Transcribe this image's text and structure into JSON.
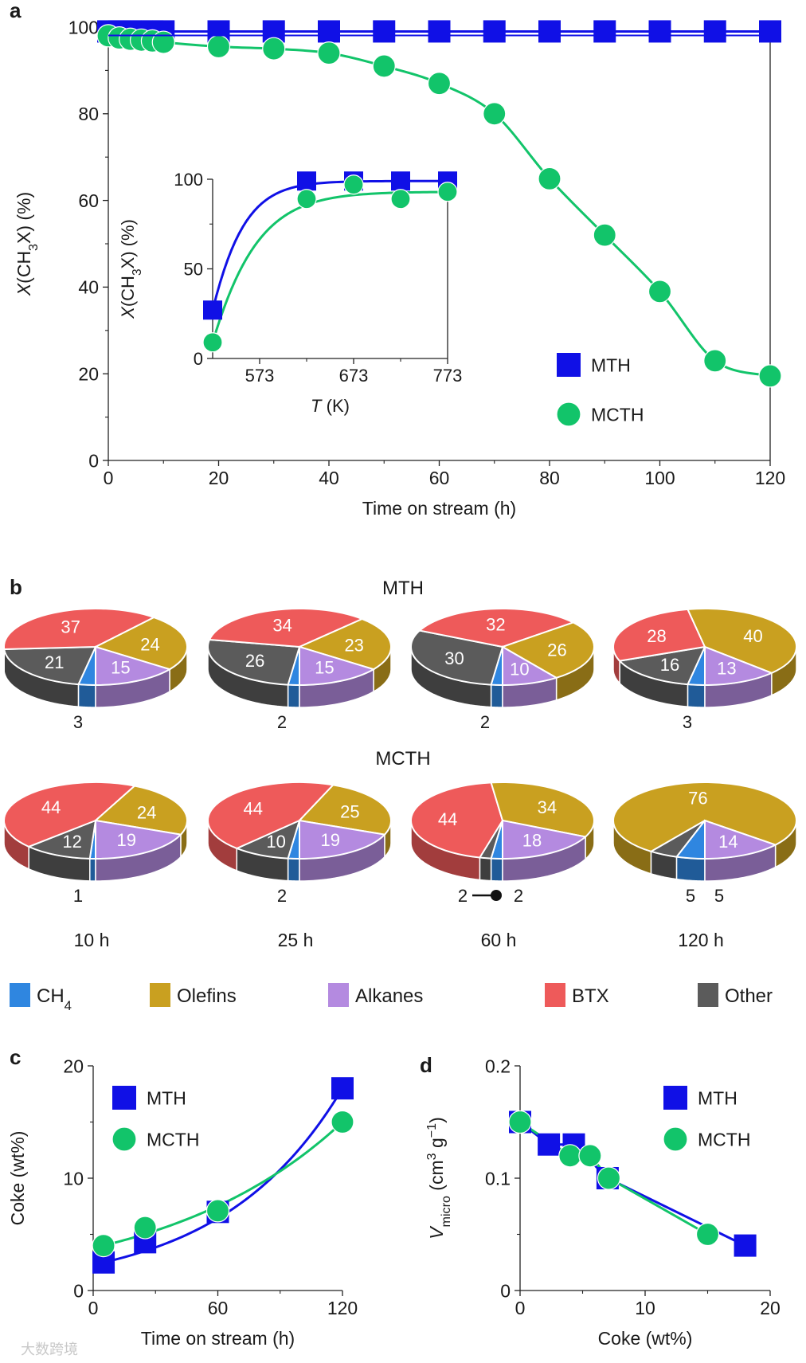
{
  "panels": {
    "a": {
      "letter": "a"
    },
    "b": {
      "letter": "b",
      "top_title": "MTH",
      "mid_title": "MCTH"
    },
    "c": {
      "letter": "c"
    },
    "d": {
      "letter": "d"
    }
  },
  "colors": {
    "MTH": "#1010e6",
    "MCTH": "#12c46a",
    "CH4": "#2f86e0",
    "Olefins": "#c9a020",
    "Alkanes": "#b48ae0",
    "BTX": "#ee5a5a",
    "Other": "#5b5b5b"
  },
  "categories_legend": [
    {
      "key": "CH4",
      "label": "CH",
      "sub": "4"
    },
    {
      "key": "Olefins",
      "label": "Olefins",
      "sub": ""
    },
    {
      "key": "Alkanes",
      "label": "Alkanes",
      "sub": ""
    },
    {
      "key": "BTX",
      "label": "BTX",
      "sub": ""
    },
    {
      "key": "Other",
      "label": "Other",
      "sub": ""
    }
  ],
  "watermark": "大数跨境",
  "chart_data": [
    {
      "id": "a",
      "type": "scatter",
      "xlabel": "Time on stream (h)",
      "ylabel": "X(CH3X) (%)",
      "xlim": [
        0,
        120
      ],
      "ylim": [
        0,
        100
      ],
      "xticks": [
        "0",
        "20",
        "40",
        "60",
        "80",
        "100",
        "120"
      ],
      "yticks": [
        "0",
        "20",
        "40",
        "60",
        "80",
        "100"
      ],
      "legend": {
        "position": "lower-right",
        "entries": [
          "MTH",
          "MCTH"
        ]
      },
      "series": [
        {
          "name": "MTH",
          "marker": "square",
          "x": [
            0,
            2,
            4,
            6,
            8,
            10,
            20,
            30,
            40,
            50,
            60,
            70,
            80,
            90,
            100,
            110,
            120
          ],
          "y": [
            99,
            99,
            99,
            99,
            99,
            99,
            99,
            99,
            99,
            99,
            99,
            99,
            99,
            99,
            99,
            99,
            99
          ]
        },
        {
          "name": "MCTH",
          "marker": "circle",
          "x": [
            0,
            2,
            4,
            6,
            8,
            10,
            20,
            30,
            40,
            50,
            60,
            70,
            80,
            90,
            100,
            110,
            120
          ],
          "y": [
            98,
            97.5,
            97.2,
            97,
            96.8,
            96.5,
            95.5,
            95,
            94,
            91,
            87,
            80,
            65,
            52,
            39,
            23,
            19.5
          ]
        }
      ]
    },
    {
      "id": "a-inset",
      "type": "scatter",
      "xlabel": "T (K)",
      "ylabel": "X(CH3X) (%)",
      "xlim": [
        523,
        773
      ],
      "ylim": [
        0,
        100
      ],
      "xticks": [
        "573",
        "673",
        "773"
      ],
      "yticks": [
        "0",
        "50",
        "100"
      ],
      "series": [
        {
          "name": "MTH",
          "marker": "square",
          "x": [
            523,
            623,
            673,
            723,
            773
          ],
          "y": [
            27,
            99,
            99,
            99,
            99
          ]
        },
        {
          "name": "MCTH",
          "marker": "circle",
          "x": [
            523,
            623,
            673,
            723,
            773
          ],
          "y": [
            9,
            89,
            97,
            89,
            93
          ]
        }
      ]
    },
    {
      "id": "b",
      "type": "pie",
      "category_order": [
        "CH4",
        "Other",
        "BTX",
        "Olefins",
        "Alkanes"
      ],
      "times": [
        "10 h",
        "25 h",
        "60 h",
        "120 h"
      ],
      "rows": [
        {
          "name": "MTH",
          "pies": [
            {
              "values": {
                "CH4": 3,
                "Other": 21,
                "BTX": 37,
                "Olefins": 24,
                "Alkanes": 15
              }
            },
            {
              "values": {
                "CH4": 2,
                "Other": 26,
                "BTX": 34,
                "Olefins": 23,
                "Alkanes": 15
              }
            },
            {
              "values": {
                "CH4": 2,
                "Other": 30,
                "BTX": 32,
                "Olefins": 26,
                "Alkanes": 10
              }
            },
            {
              "values": {
                "CH4": 3,
                "Other": 16,
                "BTX": 28,
                "Olefins": 40,
                "Alkanes": 13
              }
            }
          ]
        },
        {
          "name": "MCTH",
          "pies": [
            {
              "values": {
                "CH4": 1,
                "Other": 12,
                "BTX": 44,
                "Olefins": 24,
                "Alkanes": 19
              }
            },
            {
              "values": {
                "CH4": 2,
                "Other": 10,
                "BTX": 44,
                "Olefins": 25,
                "Alkanes": 19
              }
            },
            {
              "values": {
                "CH4": 2,
                "Other": 2,
                "BTX": 44,
                "Olefins": 34,
                "Alkanes": 18
              }
            },
            {
              "values": {
                "CH4": 5,
                "Other": 5,
                "BTX": 0,
                "Olefins": 76,
                "Alkanes": 14
              }
            }
          ]
        }
      ]
    },
    {
      "id": "c",
      "type": "scatter",
      "xlabel": "Time on stream (h)",
      "ylabel": "Coke (wt%)",
      "xlim": [
        0,
        120
      ],
      "ylim": [
        0,
        20
      ],
      "xticks": [
        "0",
        "60",
        "120"
      ],
      "yticks": [
        "0",
        "10",
        "20"
      ],
      "legend": {
        "position": "top-left",
        "entries": [
          "MTH",
          "MCTH"
        ]
      },
      "series": [
        {
          "name": "MTH",
          "marker": "square",
          "x": [
            5,
            25,
            60,
            120
          ],
          "y": [
            2.5,
            4.3,
            7,
            18
          ]
        },
        {
          "name": "MCTH",
          "marker": "circle",
          "x": [
            5,
            25,
            60,
            120
          ],
          "y": [
            4,
            5.6,
            7.1,
            15
          ]
        }
      ]
    },
    {
      "id": "d",
      "type": "scatter",
      "xlabel": "Coke (wt%)",
      "ylabel": "Vmicro (cm3 g-1)",
      "xlim": [
        0,
        20
      ],
      "ylim": [
        0,
        0.2
      ],
      "xticks": [
        "0",
        "10",
        "20"
      ],
      "yticks": [
        "0",
        "0.1",
        "0.2"
      ],
      "legend": {
        "position": "top-right",
        "entries": [
          "MTH",
          "MCTH"
        ]
      },
      "series": [
        {
          "name": "MTH",
          "marker": "square",
          "x": [
            0,
            2.3,
            4.3,
            7,
            18
          ],
          "y": [
            0.15,
            0.13,
            0.13,
            0.1,
            0.04
          ]
        },
        {
          "name": "MCTH",
          "marker": "circle",
          "x": [
            0,
            4,
            5.6,
            7.1,
            15
          ],
          "y": [
            0.15,
            0.12,
            0.12,
            0.1,
            0.05
          ]
        }
      ]
    }
  ]
}
